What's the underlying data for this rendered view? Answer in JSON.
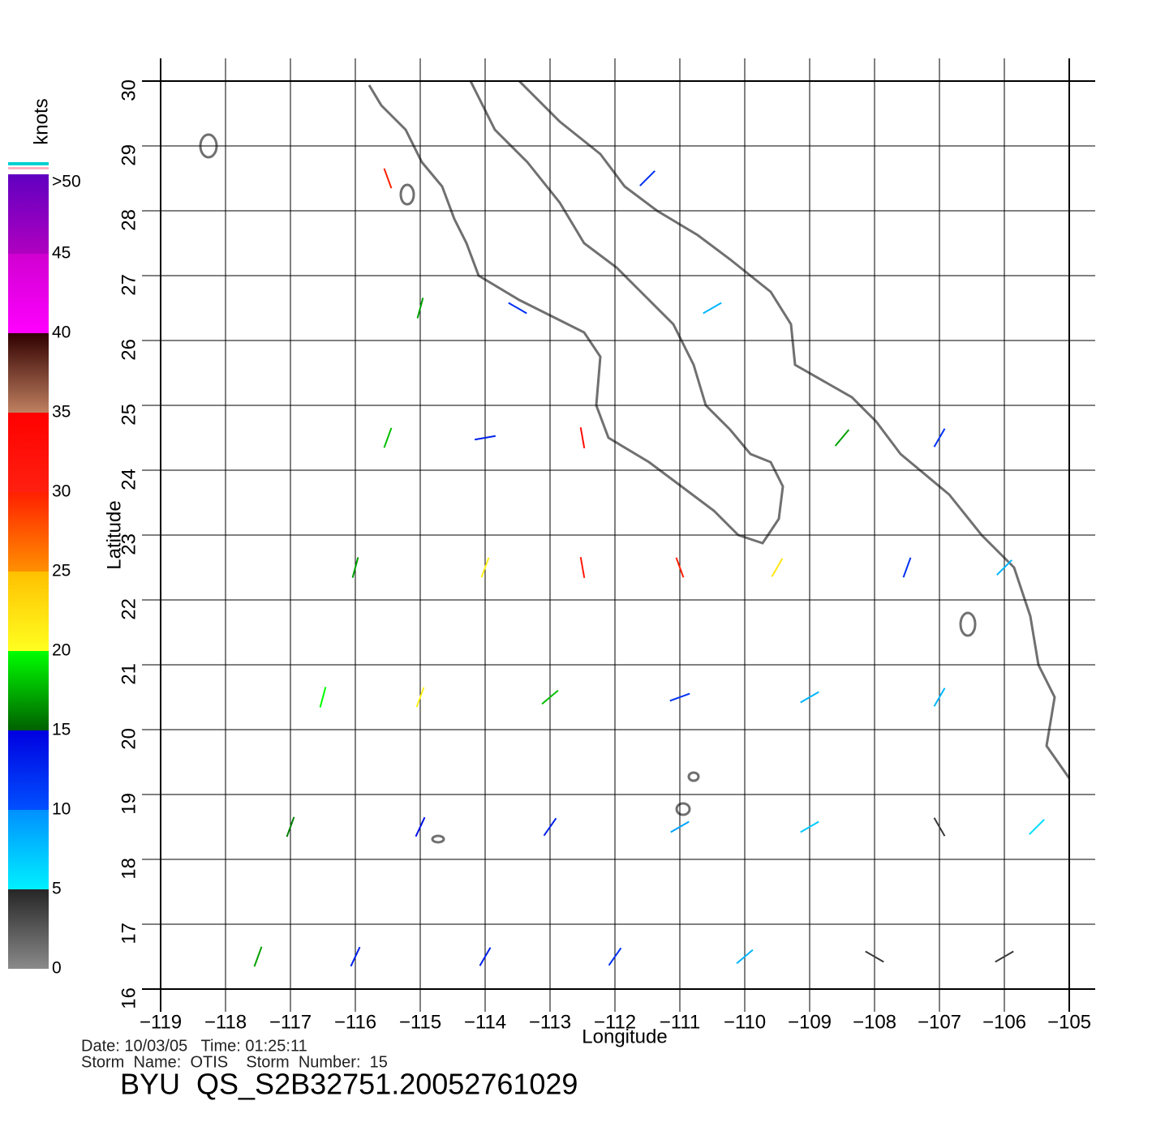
{
  "map": {
    "xlabel": "Longitude",
    "ylabel": "Latitude",
    "xlim": [
      -119,
      -105
    ],
    "ylim": [
      16,
      30
    ],
    "xticks": [
      {
        "value": -119,
        "label": "−119"
      },
      {
        "value": -118,
        "label": "−118"
      },
      {
        "value": -117,
        "label": "−117"
      },
      {
        "value": -116,
        "label": "−116"
      },
      {
        "value": -115,
        "label": "−115"
      },
      {
        "value": -114,
        "label": "−114"
      },
      {
        "value": -113,
        "label": "−113"
      },
      {
        "value": -112,
        "label": "−112"
      },
      {
        "value": -111,
        "label": "−111"
      },
      {
        "value": -110,
        "label": "−110"
      },
      {
        "value": -109,
        "label": "−109"
      },
      {
        "value": -108,
        "label": "−108"
      },
      {
        "value": -107,
        "label": "−107"
      },
      {
        "value": -106,
        "label": "−106"
      },
      {
        "value": -105,
        "label": "−105"
      }
    ],
    "yticks": [
      16,
      17,
      18,
      19,
      20,
      21,
      22,
      23,
      24,
      25,
      26,
      27,
      28,
      29,
      30
    ],
    "grid": true,
    "coastline_color": "#707070"
  },
  "colorbar": {
    "label": "knots",
    "ticks": [
      0,
      5,
      10,
      15,
      20,
      25,
      30,
      35,
      40,
      45,
      {
        "value": 50,
        "label": ">50"
      }
    ],
    "segments": [
      [
        "#8a8a8a",
        "#262626"
      ],
      [
        "#00f0ff",
        "#0090ff"
      ],
      [
        "#0050ff",
        "#0000e0"
      ],
      [
        "#006000",
        "#00ff00"
      ],
      [
        "#ffff20",
        "#ffc000"
      ],
      [
        "#ff9000",
        "#ff2000"
      ],
      [
        "#ff2010",
        "#ff0000"
      ],
      [
        "#c08060",
        "#300000"
      ],
      [
        "#ff00ff",
        "#d000d0"
      ],
      [
        "#b000c0",
        "#6000c0"
      ]
    ]
  },
  "wind": {
    "lon": [
      -117.5,
      -116,
      -114,
      -112,
      -110,
      -108,
      -106,
      -117,
      -115,
      -113,
      -111,
      -109,
      -107,
      -105.5,
      -116.5,
      -115,
      -113,
      -111,
      -109,
      -107,
      -116,
      -114,
      -112.5,
      -111,
      -109.5,
      -107.5,
      -106,
      -115.5,
      -114,
      -112.5,
      -108.5,
      -107,
      -115,
      -113.5,
      -110.5,
      -115.5,
      -111.5
    ],
    "lat": [
      16.5,
      16.5,
      16.5,
      16.5,
      16.5,
      16.5,
      16.5,
      18.5,
      18.5,
      18.5,
      18.5,
      18.5,
      18.5,
      18.5,
      20.5,
      20.5,
      20.5,
      20.5,
      20.5,
      20.5,
      22.5,
      22.5,
      22.5,
      22.5,
      22.5,
      22.5,
      22.5,
      24.5,
      24.5,
      24.5,
      24.5,
      24.5,
      26.5,
      26.5,
      26.5,
      28.5,
      28.5
    ],
    "speed": [
      17,
      13,
      13,
      12,
      8,
      4,
      4,
      16,
      14,
      13,
      9,
      7,
      4,
      6,
      20,
      21,
      18,
      12,
      8,
      8,
      17,
      21,
      31,
      30,
      22,
      12,
      8,
      18,
      13,
      33,
      17,
      12,
      17,
      12,
      8,
      30,
      12
    ],
    "direction": [
      200,
      205,
      210,
      215,
      230,
      120,
      60,
      200,
      205,
      215,
      240,
      60,
      150,
      45,
      195,
      200,
      230,
      250,
      60,
      30,
      195,
      200,
      170,
      160,
      30,
      20,
      45,
      200,
      260,
      170,
      40,
      30,
      195,
      120,
      60,
      160,
      45
    ]
  },
  "footer": {
    "info": [
      "Date: 10/03/05   Time: 01:25:11",
      "Storm  Name:  OTIS    Storm  Number:  15"
    ],
    "id": "BYU  QS_S2B32751.20052761029"
  }
}
